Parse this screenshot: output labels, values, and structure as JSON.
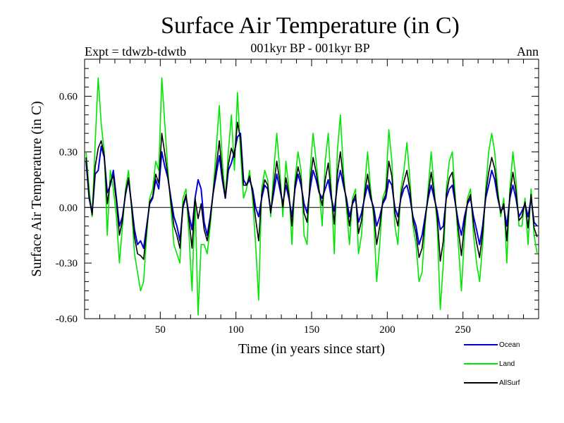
{
  "chart_data": {
    "type": "line",
    "title": "Surface Air Temperature (in C)",
    "subtitle": "001kyr BP - 001kyr BP",
    "left_annotation": "Expt = tdwzb-tdwtb",
    "right_annotation": "Ann",
    "xlabel": "Time (in years since start)",
    "ylabel": "Surface Air Temperature (in C)",
    "xlim": [
      0,
      300
    ],
    "ylim": [
      -0.6,
      0.8
    ],
    "xticks": [
      50,
      100,
      150,
      200,
      250
    ],
    "yticks": [
      -0.6,
      -0.3,
      0.0,
      0.3,
      0.6
    ],
    "ytick_labels": [
      "-0.60",
      "-0.30",
      "0.00",
      "0.30",
      "0.60"
    ],
    "grid": false,
    "zero_line": true,
    "legend_position": "bottom-right below plot",
    "series": [
      {
        "name": "Ocean",
        "color": "#0000dd",
        "x": [
          1,
          3,
          5,
          7,
          9,
          11,
          13,
          15,
          17,
          19,
          21,
          23,
          25,
          27,
          29,
          31,
          33,
          35,
          37,
          39,
          41,
          43,
          45,
          47,
          49,
          51,
          53,
          55,
          57,
          59,
          61,
          63,
          65,
          67,
          69,
          71,
          73,
          75,
          77,
          79,
          81,
          83,
          85,
          87,
          89,
          91,
          93,
          95,
          97,
          99,
          101,
          103,
          105,
          107,
          109,
          111,
          113,
          115,
          117,
          119,
          121,
          123,
          125,
          127,
          129,
          131,
          133,
          135,
          137,
          139,
          141,
          143,
          145,
          147,
          149,
          151,
          153,
          155,
          157,
          159,
          161,
          163,
          165,
          167,
          169,
          171,
          173,
          175,
          177,
          179,
          181,
          183,
          185,
          187,
          189,
          191,
          193,
          195,
          197,
          199,
          201,
          203,
          205,
          207,
          209,
          211,
          213,
          215,
          217,
          219,
          221,
          223,
          225,
          227,
          229,
          231,
          233,
          235,
          237,
          239,
          241,
          243,
          245,
          247,
          249,
          251,
          253,
          255,
          257,
          259,
          261,
          263,
          265,
          267,
          269,
          271,
          273,
          275,
          277,
          279,
          281,
          283,
          285,
          287,
          289,
          291,
          293,
          295,
          297,
          299
        ],
        "values": [
          0.25,
          0.05,
          -0.03,
          0.18,
          0.2,
          0.33,
          0.27,
          0.08,
          0.12,
          0.2,
          0.05,
          -0.1,
          -0.05,
          0.07,
          0.15,
          0.02,
          -0.12,
          -0.2,
          -0.18,
          -0.22,
          -0.1,
          0.02,
          0.05,
          0.15,
          0.1,
          0.3,
          0.22,
          0.16,
          0.05,
          -0.05,
          -0.1,
          -0.18,
          0.0,
          0.06,
          -0.04,
          -0.12,
          0.05,
          0.15,
          0.1,
          -0.08,
          -0.15,
          -0.05,
          0.08,
          0.18,
          0.28,
          0.15,
          0.05,
          0.2,
          0.24,
          0.3,
          0.38,
          0.4,
          0.15,
          0.12,
          0.15,
          0.1,
          0.0,
          -0.05,
          0.05,
          0.12,
          0.1,
          -0.02,
          0.08,
          0.18,
          0.1,
          0.02,
          0.12,
          0.05,
          -0.05,
          0.1,
          0.18,
          0.12,
          0.02,
          -0.03,
          0.1,
          0.2,
          0.15,
          0.08,
          0.05,
          0.1,
          0.15,
          0.05,
          -0.02,
          0.12,
          0.2,
          0.12,
          0.05,
          -0.05,
          0.02,
          0.05,
          -0.08,
          -0.03,
          0.05,
          0.12,
          0.05,
          0.0,
          -0.1,
          -0.05,
          0.02,
          0.05,
          0.15,
          0.12,
          0.0,
          -0.05,
          0.05,
          0.1,
          0.12,
          0.05,
          -0.05,
          -0.1,
          -0.2,
          -0.15,
          -0.05,
          0.05,
          0.12,
          0.05,
          -0.02,
          -0.12,
          -0.1,
          0.05,
          0.1,
          0.12,
          0.02,
          -0.08,
          -0.15,
          -0.05,
          0.02,
          0.05,
          -0.05,
          -0.12,
          -0.2,
          -0.1,
          0.05,
          0.12,
          0.2,
          0.15,
          0.05,
          -0.02,
          0.0,
          -0.1,
          0.05,
          0.12,
          0.05,
          -0.05,
          -0.02,
          0.02,
          -0.05,
          0.05,
          -0.08,
          -0.1
        ]
      },
      {
        "name": "Land",
        "color": "#00e600",
        "x": [
          1,
          3,
          5,
          7,
          9,
          11,
          13,
          15,
          17,
          19,
          21,
          23,
          25,
          27,
          29,
          31,
          33,
          35,
          37,
          39,
          41,
          43,
          45,
          47,
          49,
          51,
          53,
          55,
          57,
          59,
          61,
          63,
          65,
          67,
          69,
          71,
          73,
          75,
          77,
          79,
          81,
          83,
          85,
          87,
          89,
          91,
          93,
          95,
          97,
          99,
          101,
          103,
          105,
          107,
          109,
          111,
          113,
          115,
          117,
          119,
          121,
          123,
          125,
          127,
          129,
          131,
          133,
          135,
          137,
          139,
          141,
          143,
          145,
          147,
          149,
          151,
          153,
          155,
          157,
          159,
          161,
          163,
          165,
          167,
          169,
          171,
          173,
          175,
          177,
          179,
          181,
          183,
          185,
          187,
          189,
          191,
          193,
          195,
          197,
          199,
          201,
          203,
          205,
          207,
          209,
          211,
          213,
          215,
          217,
          219,
          221,
          223,
          225,
          227,
          229,
          231,
          233,
          235,
          237,
          239,
          241,
          243,
          245,
          247,
          249,
          251,
          253,
          255,
          257,
          259,
          261,
          263,
          265,
          267,
          269,
          271,
          273,
          275,
          277,
          279,
          281,
          283,
          285,
          287,
          289,
          291,
          293,
          295,
          297,
          299
        ],
        "values": [
          0.3,
          0.1,
          -0.05,
          0.35,
          0.7,
          0.45,
          0.3,
          -0.15,
          0.2,
          0.1,
          -0.05,
          -0.3,
          -0.1,
          0.1,
          0.2,
          0.0,
          -0.25,
          -0.35,
          -0.45,
          -0.4,
          -0.15,
          0.05,
          0.1,
          0.25,
          0.2,
          0.7,
          0.45,
          0.2,
          0.0,
          -0.2,
          -0.25,
          -0.3,
          0.05,
          0.1,
          -0.15,
          -0.45,
          0.05,
          -0.58,
          -0.2,
          -0.2,
          -0.25,
          -0.1,
          0.1,
          0.32,
          0.55,
          0.25,
          0.05,
          0.3,
          0.5,
          0.2,
          0.62,
          0.3,
          0.05,
          0.1,
          0.2,
          0.05,
          -0.2,
          -0.5,
          0.1,
          0.2,
          0.15,
          -0.05,
          0.2,
          0.4,
          0.2,
          -0.05,
          0.25,
          0.1,
          -0.2,
          0.15,
          0.3,
          0.2,
          -0.15,
          -0.2,
          0.2,
          0.4,
          0.25,
          0.1,
          -0.1,
          0.25,
          0.4,
          0.1,
          -0.25,
          0.3,
          0.5,
          0.2,
          0.0,
          -0.2,
          0.05,
          0.1,
          -0.25,
          -0.15,
          0.1,
          0.3,
          0.1,
          -0.05,
          -0.4,
          -0.2,
          0.05,
          0.1,
          0.42,
          0.25,
          -0.1,
          -0.2,
          0.1,
          0.2,
          0.35,
          0.15,
          -0.1,
          -0.2,
          -0.4,
          -0.35,
          -0.1,
          0.1,
          0.3,
          0.1,
          -0.1,
          -0.55,
          -0.3,
          0.1,
          0.25,
          0.3,
          0.05,
          -0.2,
          -0.45,
          -0.15,
          0.05,
          0.1,
          -0.15,
          -0.3,
          -0.4,
          -0.2,
          0.1,
          0.3,
          0.4,
          0.3,
          0.1,
          -0.05,
          0.05,
          -0.3,
          0.1,
          0.3,
          0.15,
          -0.1,
          -0.1,
          0.05,
          -0.2,
          0.1,
          -0.15,
          -0.25
        ]
      },
      {
        "name": "AllSurf",
        "color": "#000000",
        "x": [
          1,
          3,
          5,
          7,
          9,
          11,
          13,
          15,
          17,
          19,
          21,
          23,
          25,
          27,
          29,
          31,
          33,
          35,
          37,
          39,
          41,
          43,
          45,
          47,
          49,
          51,
          53,
          55,
          57,
          59,
          61,
          63,
          65,
          67,
          69,
          71,
          73,
          75,
          77,
          79,
          81,
          83,
          85,
          87,
          89,
          91,
          93,
          95,
          97,
          99,
          101,
          103,
          105,
          107,
          109,
          111,
          113,
          115,
          117,
          119,
          121,
          123,
          125,
          127,
          129,
          131,
          133,
          135,
          137,
          139,
          141,
          143,
          145,
          147,
          149,
          151,
          153,
          155,
          157,
          159,
          161,
          163,
          165,
          167,
          169,
          171,
          173,
          175,
          177,
          179,
          181,
          183,
          185,
          187,
          189,
          191,
          193,
          195,
          197,
          199,
          201,
          203,
          205,
          207,
          209,
          211,
          213,
          215,
          217,
          219,
          221,
          223,
          225,
          227,
          229,
          231,
          233,
          235,
          237,
          239,
          241,
          243,
          245,
          247,
          249,
          251,
          253,
          255,
          257,
          259,
          261,
          263,
          265,
          267,
          269,
          271,
          273,
          275,
          277,
          279,
          281,
          283,
          285,
          287,
          289,
          291,
          293,
          295,
          297,
          299
        ],
        "values": [
          0.27,
          0.06,
          -0.04,
          0.22,
          0.32,
          0.36,
          0.28,
          0.02,
          0.14,
          0.17,
          0.03,
          -0.15,
          -0.07,
          0.08,
          0.16,
          0.01,
          -0.16,
          -0.25,
          -0.26,
          -0.28,
          -0.12,
          0.03,
          0.06,
          0.18,
          0.13,
          0.4,
          0.29,
          0.17,
          0.03,
          -0.1,
          -0.15,
          -0.22,
          0.01,
          0.07,
          -0.07,
          -0.22,
          0.05,
          -0.06,
          0.02,
          -0.12,
          -0.18,
          -0.07,
          0.09,
          0.22,
          0.36,
          0.18,
          0.05,
          0.23,
          0.32,
          0.27,
          0.46,
          0.37,
          0.12,
          0.12,
          0.17,
          0.08,
          -0.06,
          -0.18,
          0.07,
          0.15,
          0.12,
          -0.03,
          0.12,
          0.25,
          0.14,
          0.0,
          0.16,
          0.07,
          -0.1,
          0.12,
          0.22,
          0.15,
          -0.03,
          -0.08,
          0.14,
          0.27,
          0.19,
          0.09,
          0.01,
          0.15,
          0.24,
          0.07,
          -0.09,
          0.18,
          0.3,
          0.15,
          0.03,
          -0.1,
          0.03,
          0.07,
          -0.14,
          -0.07,
          0.07,
          0.18,
          0.07,
          -0.02,
          -0.2,
          -0.1,
          0.03,
          0.07,
          0.25,
          0.17,
          -0.03,
          -0.1,
          0.07,
          0.14,
          0.2,
          0.09,
          -0.07,
          -0.14,
          -0.27,
          -0.22,
          -0.07,
          0.07,
          0.19,
          0.07,
          -0.05,
          -0.29,
          -0.18,
          0.07,
          0.16,
          0.19,
          0.03,
          -0.12,
          -0.26,
          -0.09,
          0.03,
          0.07,
          -0.09,
          -0.19,
          -0.27,
          -0.14,
          0.07,
          0.19,
          0.27,
          0.21,
          0.07,
          -0.03,
          0.02,
          -0.18,
          0.07,
          0.19,
          0.09,
          -0.07,
          -0.05,
          0.03,
          -0.11,
          0.07,
          -0.11,
          -0.16
        ]
      }
    ]
  }
}
